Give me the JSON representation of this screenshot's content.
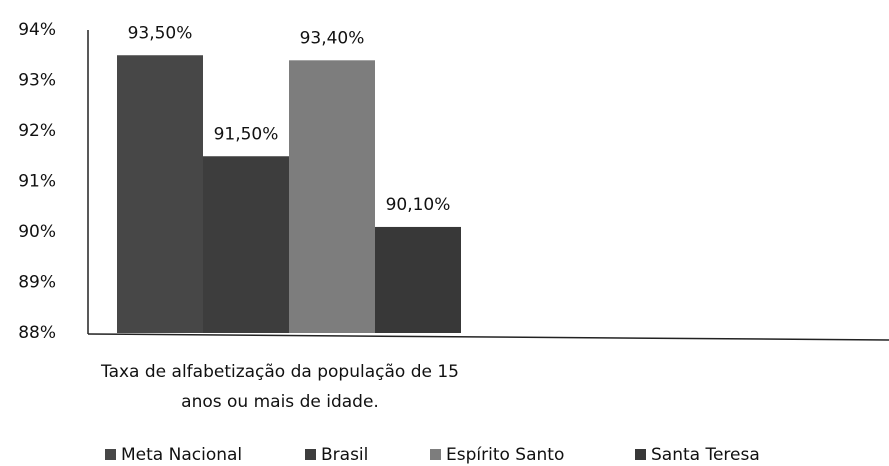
{
  "chart_data": {
    "type": "bar",
    "categories": [
      "Taxa de alfabetização da população de 15 anos ou mais de idade."
    ],
    "series": [
      {
        "name": "Meta Nacional",
        "color": "#474747",
        "values": [
          93.5
        ],
        "value_labels": [
          "93,50%"
        ]
      },
      {
        "name": "Brasil",
        "color": "#3d3d3d",
        "values": [
          91.5
        ],
        "value_labels": [
          "91,50%"
        ]
      },
      {
        "name": "Espírito Santo",
        "color": "#7d7d7d",
        "values": [
          93.4
        ],
        "value_labels": [
          "93,40%"
        ]
      },
      {
        "name": "Santa Teresa",
        "color": "#383838",
        "values": [
          90.1
        ],
        "value_labels": [
          "90,10%"
        ]
      }
    ],
    "ylim": [
      88,
      94
    ],
    "yticks": [
      {
        "value": 88,
        "label": "88%"
      },
      {
        "value": 89,
        "label": "89%"
      },
      {
        "value": 90,
        "label": "90%"
      },
      {
        "value": 91,
        "label": "91%"
      },
      {
        "value": 92,
        "label": "92%"
      },
      {
        "value": 93,
        "label": "93%"
      },
      {
        "value": 94,
        "label": "94%"
      }
    ],
    "legend": "bottom"
  }
}
